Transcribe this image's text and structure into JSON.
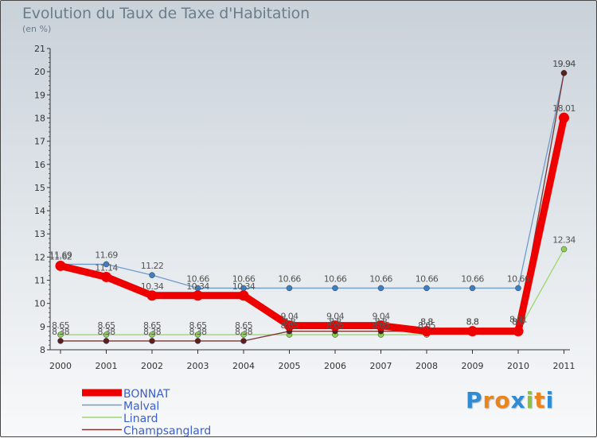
{
  "chart_data": {
    "type": "line",
    "title": "Evolution du Taux de Taxe d'Habitation",
    "subtitle": "(en %)",
    "x": [
      "2000",
      "2001",
      "2002",
      "2003",
      "2004",
      "2005",
      "2006",
      "2007",
      "2008",
      "2009",
      "2010",
      "2011"
    ],
    "ylim": [
      8,
      21
    ],
    "yticks": [
      8,
      9,
      10,
      11,
      12,
      13,
      14,
      15,
      16,
      17,
      18,
      19,
      20,
      21
    ],
    "series": [
      {
        "name": "Malval",
        "color": "#6f9ccb",
        "marker": "#3d7fc4",
        "values": [
          11.69,
          11.69,
          11.22,
          10.66,
          10.66,
          10.66,
          10.66,
          10.66,
          10.66,
          10.66,
          10.66,
          19.94
        ],
        "labels": [
          "11.69",
          "11.69",
          "11.22",
          "10.66",
          "10.66",
          "10.66",
          "10.66",
          "10.66",
          "10.66",
          "10.66",
          "10.66",
          "19.94"
        ]
      },
      {
        "name": "Linard",
        "color": "#9fd56f",
        "marker": "#8ad34e",
        "values": [
          8.65,
          8.65,
          8.65,
          8.65,
          8.65,
          8.65,
          8.65,
          8.65,
          8.65,
          8.8,
          8.8,
          12.34
        ],
        "labels": [
          "8.65",
          "8.65",
          "8.65",
          "8.65",
          "8.65",
          "8.65",
          "8.65",
          "8.65",
          "8.65",
          "8.8",
          "8.8",
          "12.34"
        ]
      },
      {
        "name": "Champsanglard",
        "color": "#7b3535",
        "marker": "#5b1f1f",
        "values": [
          8.38,
          8.38,
          8.38,
          8.38,
          8.38,
          8.8,
          8.8,
          8.8,
          8.8,
          8.8,
          8.91,
          19.94
        ],
        "labels": [
          "8.38",
          "8.38",
          "8.38",
          "8.38",
          "8.38",
          "8.8",
          "8.8",
          "8.8",
          "8.8",
          "8.8",
          "8.91",
          "19.94"
        ]
      },
      {
        "name": "BONNAT",
        "color": "#ee0000",
        "marker": "#ee0000",
        "values": [
          11.62,
          11.14,
          10.34,
          10.34,
          10.34,
          9.04,
          9.04,
          9.04,
          8.8,
          8.8,
          8.8,
          18.01
        ],
        "labels": [
          "11.62",
          "11.14",
          "10.34",
          "10.34",
          "10.34",
          "9.04",
          "9.04",
          "9.04",
          "8.8",
          "8.8",
          "8.8",
          "18.01"
        ]
      }
    ],
    "legend": [
      {
        "name": "BONNAT",
        "color": "#ee0000",
        "text_color": "#3a5fcd"
      },
      {
        "name": "Malval",
        "color": "#6f9ccb",
        "text_color": "#3a5fcd"
      },
      {
        "name": "Linard",
        "color": "#9fd56f",
        "text_color": "#3a5fcd"
      },
      {
        "name": "Champsanglard",
        "color": "#7b3535",
        "text_color": "#3a5fcd"
      }
    ],
    "legend_position": "bottom-left",
    "grid": false
  },
  "logo": {
    "letters": [
      "P",
      "r",
      "o",
      "x",
      "i",
      "t",
      "i"
    ],
    "colors": [
      "#2e8bd6",
      "#e9841e",
      "#e9841e",
      "#2e8bd6",
      "#8ac43f",
      "#e9841e",
      "#2e8bd6"
    ]
  }
}
